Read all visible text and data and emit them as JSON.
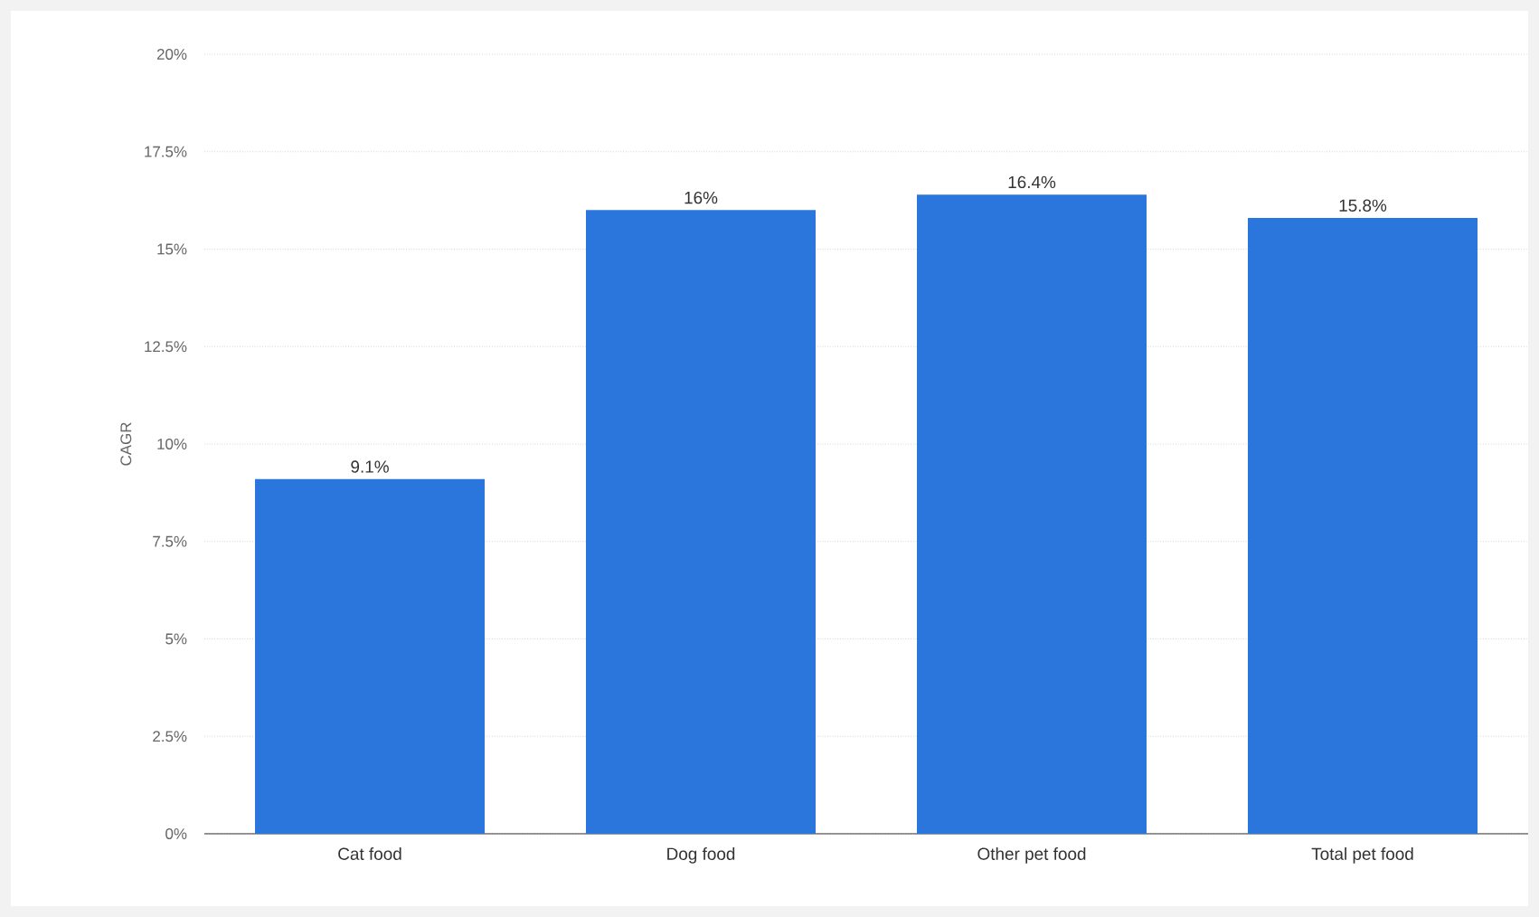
{
  "chart_data": {
    "type": "bar",
    "ylabel": "CAGR",
    "categories": [
      "Cat food",
      "Dog food",
      "Other pet food",
      "Total pet food"
    ],
    "values": [
      9.1,
      16,
      16.4,
      15.8
    ],
    "value_labels": [
      "9.1%",
      "16%",
      "16.4%",
      "15.8%"
    ],
    "color": "#2a76dd",
    "ylim": [
      0,
      20
    ],
    "yticks": [
      {
        "value": 0,
        "label": "0%"
      },
      {
        "value": 2.5,
        "label": "2.5%"
      },
      {
        "value": 5,
        "label": "5%"
      },
      {
        "value": 7.5,
        "label": "7.5%"
      },
      {
        "value": 10,
        "label": "10%"
      },
      {
        "value": 12.5,
        "label": "12.5%"
      },
      {
        "value": 15,
        "label": "15%"
      },
      {
        "value": 17.5,
        "label": "17.5%"
      },
      {
        "value": 20,
        "label": "20%"
      }
    ],
    "grid": "y"
  }
}
